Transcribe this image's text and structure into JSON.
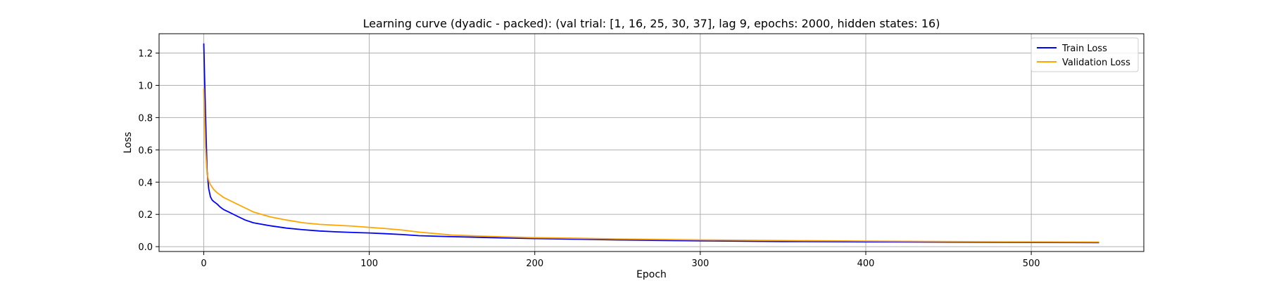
{
  "chart_data": {
    "type": "line",
    "title": "Learning curve (dyadic - packed): (val trial: [1, 16, 25, 30, 37], lag 9, epochs: 2000, hidden states: 16)",
    "xlabel": "Epoch",
    "ylabel": "Loss",
    "xlim": [
      -27,
      568
    ],
    "ylim": [
      -0.03,
      1.32
    ],
    "xticks": [
      0,
      100,
      200,
      300,
      400,
      500
    ],
    "yticks": [
      0.0,
      0.2,
      0.4,
      0.6,
      0.8,
      1.0,
      1.2
    ],
    "ytick_labels": [
      "0.0",
      "0.2",
      "0.4",
      "0.6",
      "0.8",
      "1.0",
      "1.2"
    ],
    "grid": true,
    "legend_position": "top-right",
    "series": [
      {
        "name": "Train Loss",
        "color": "#0000ff",
        "x": [
          0,
          1,
          2,
          3,
          4,
          5,
          6,
          8,
          10,
          12,
          15,
          20,
          25,
          30,
          40,
          50,
          60,
          70,
          80,
          90,
          100,
          110,
          120,
          130,
          150,
          175,
          200,
          225,
          250,
          275,
          300,
          350,
          400,
          450,
          500,
          541
        ],
        "y": [
          1.26,
          0.85,
          0.47,
          0.36,
          0.31,
          0.29,
          0.28,
          0.265,
          0.245,
          0.23,
          0.215,
          0.19,
          0.165,
          0.148,
          0.13,
          0.115,
          0.105,
          0.097,
          0.092,
          0.088,
          0.085,
          0.08,
          0.075,
          0.068,
          0.062,
          0.056,
          0.05,
          0.046,
          0.042,
          0.039,
          0.036,
          0.032,
          0.03,
          0.028,
          0.026,
          0.025
        ]
      },
      {
        "name": "Validation Loss",
        "color": "#ffa500",
        "x": [
          0,
          1,
          2,
          3,
          4,
          5,
          6,
          8,
          10,
          12,
          15,
          20,
          25,
          30,
          40,
          50,
          60,
          70,
          80,
          90,
          100,
          110,
          120,
          130,
          150,
          175,
          200,
          225,
          250,
          275,
          300,
          350,
          400,
          450,
          500,
          541
        ],
        "y": [
          0.98,
          0.62,
          0.45,
          0.41,
          0.385,
          0.37,
          0.355,
          0.335,
          0.32,
          0.305,
          0.29,
          0.265,
          0.24,
          0.215,
          0.185,
          0.165,
          0.148,
          0.138,
          0.133,
          0.127,
          0.12,
          0.112,
          0.103,
          0.09,
          0.072,
          0.063,
          0.056,
          0.052,
          0.048,
          0.045,
          0.042,
          0.038,
          0.035,
          0.032,
          0.03,
          0.029
        ]
      }
    ]
  }
}
